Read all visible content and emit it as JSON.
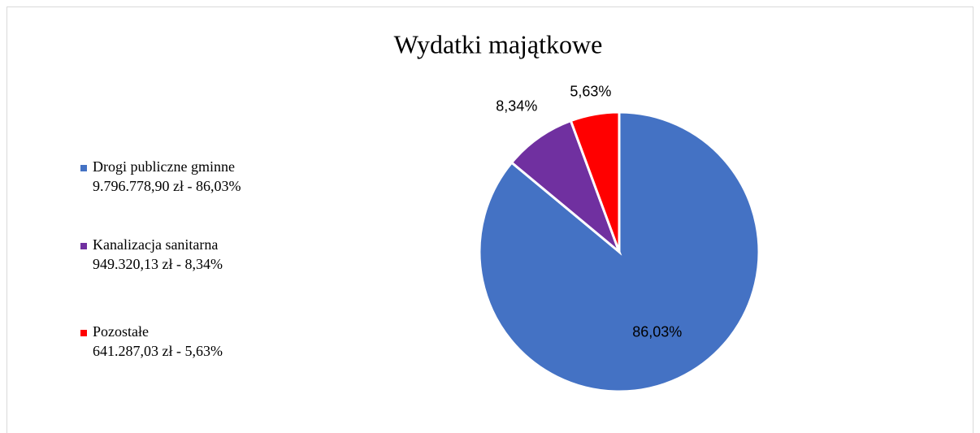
{
  "chart_data": {
    "type": "pie",
    "title": "Wydatki majątkowe",
    "categories": [
      "Drogi publiczne gminne",
      "Kanalizacja sanitarna",
      "Pozostałe"
    ],
    "legend_details": [
      "9.796.778,90 zł - 86,03%",
      "949.320,13 zł - 8,34%",
      "641.287,03 zł - 5,63%"
    ],
    "values": [
      86.03,
      8.34,
      5.63
    ],
    "value_labels": [
      "86,03%",
      "8,34%",
      "5,63%"
    ],
    "colors": [
      "#4472c4",
      "#7030a0",
      "#ff0000"
    ],
    "legend": "left"
  }
}
